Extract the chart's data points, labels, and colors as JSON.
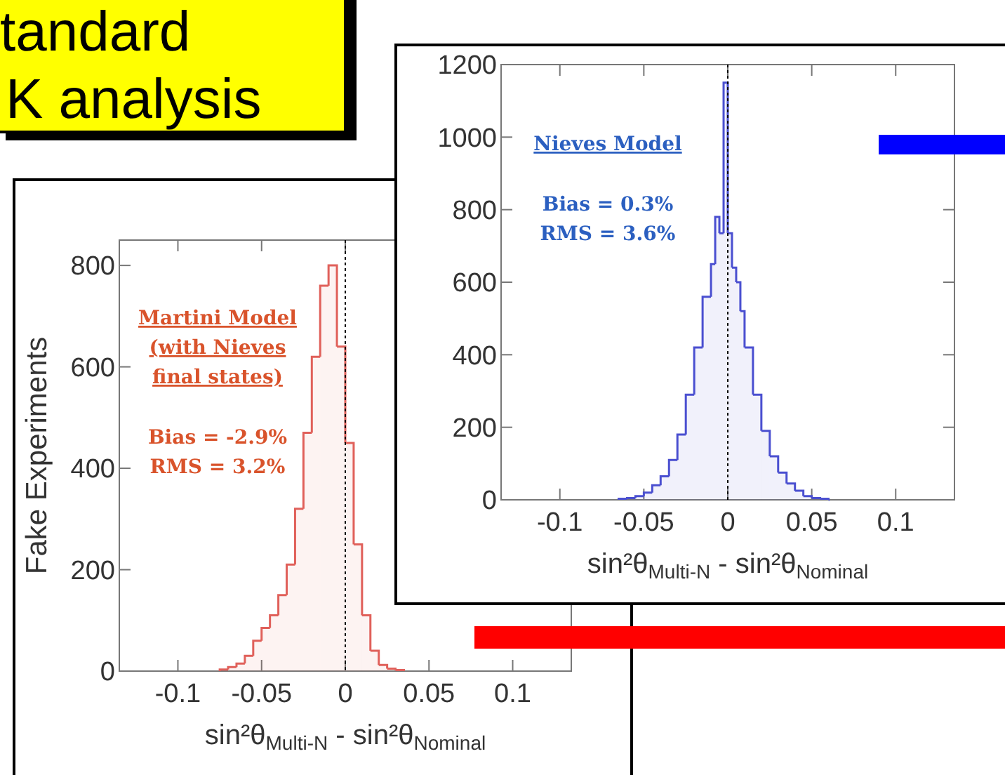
{
  "chart_data": [
    {
      "type": "other",
      "annotations": [
        "tandard",
        "K analysis"
      ]
    },
    {
      "type": "histogram",
      "xlabel": "sin²θ$_{Multi-N}$ - sin²θ$_{Nominal}$",
      "color": "#4a4fd0",
      "bins": [
        -0.065,
        -0.06,
        -0.055,
        -0.05,
        -0.045,
        -0.04,
        -0.035,
        -0.03,
        -0.025,
        -0.02,
        -0.015,
        -0.01,
        -0.0075,
        -0.005,
        -0.0025,
        0,
        0.0025,
        0.005,
        0.0075,
        0.01,
        0.015,
        0.02,
        0.025,
        0.03,
        0.035,
        0.04,
        0.045,
        0.05,
        0.055,
        0.06
      ],
      "values": [
        3,
        5,
        10,
        20,
        40,
        65,
        110,
        180,
        290,
        420,
        560,
        650,
        780,
        735,
        1150,
        735,
        640,
        600,
        520,
        420,
        290,
        190,
        120,
        75,
        45,
        25,
        10,
        5,
        3
      ],
      "xlim": [
        -0.135,
        0.135
      ],
      "xticks": [
        -0.1,
        -0.05,
        0,
        0.05,
        0.1
      ],
      "ylim": [
        0,
        1200
      ],
      "yticks": [
        0,
        200,
        400,
        600,
        800,
        1000,
        1200
      ],
      "ref_lines": [
        {
          "axis": "x",
          "value": 0,
          "color": "#000000",
          "line_style": "dotted"
        }
      ],
      "annotations": [
        "Nieves Model",
        "Bias = 0.3%",
        "RMS = 3.6%"
      ]
    },
    {
      "type": "histogram",
      "xlabel": "sin²θ$_{Multi-N}$ - sin²θ$_{Nominal}$",
      "ylabel": "Fake Experiments",
      "color": "#e0605a",
      "bins": [
        -0.075,
        -0.07,
        -0.065,
        -0.06,
        -0.055,
        -0.05,
        -0.045,
        -0.04,
        -0.035,
        -0.03,
        -0.025,
        -0.02,
        -0.015,
        -0.01,
        -0.005,
        0,
        0.005,
        0.01,
        0.015,
        0.02,
        0.025,
        0.03,
        0.035
      ],
      "values": [
        3,
        8,
        15,
        30,
        60,
        85,
        110,
        150,
        210,
        320,
        470,
        620,
        760,
        800,
        640,
        450,
        250,
        110,
        40,
        12,
        5,
        2
      ],
      "xlim": [
        -0.135,
        0.135
      ],
      "xticks": [
        -0.1,
        -0.05,
        0,
        0.05,
        0.1
      ],
      "ylim": [
        0,
        850
      ],
      "yticks": [
        0,
        200,
        400,
        600,
        800
      ],
      "ref_lines": [
        {
          "axis": "x",
          "value": 0,
          "color": "#000000",
          "line_style": "dotted"
        }
      ],
      "annotations": [
        "Martini Model",
        "(with Nieves",
        "final states)",
        "Bias = -2.9%",
        "RMS = 3.2%"
      ]
    }
  ]
}
